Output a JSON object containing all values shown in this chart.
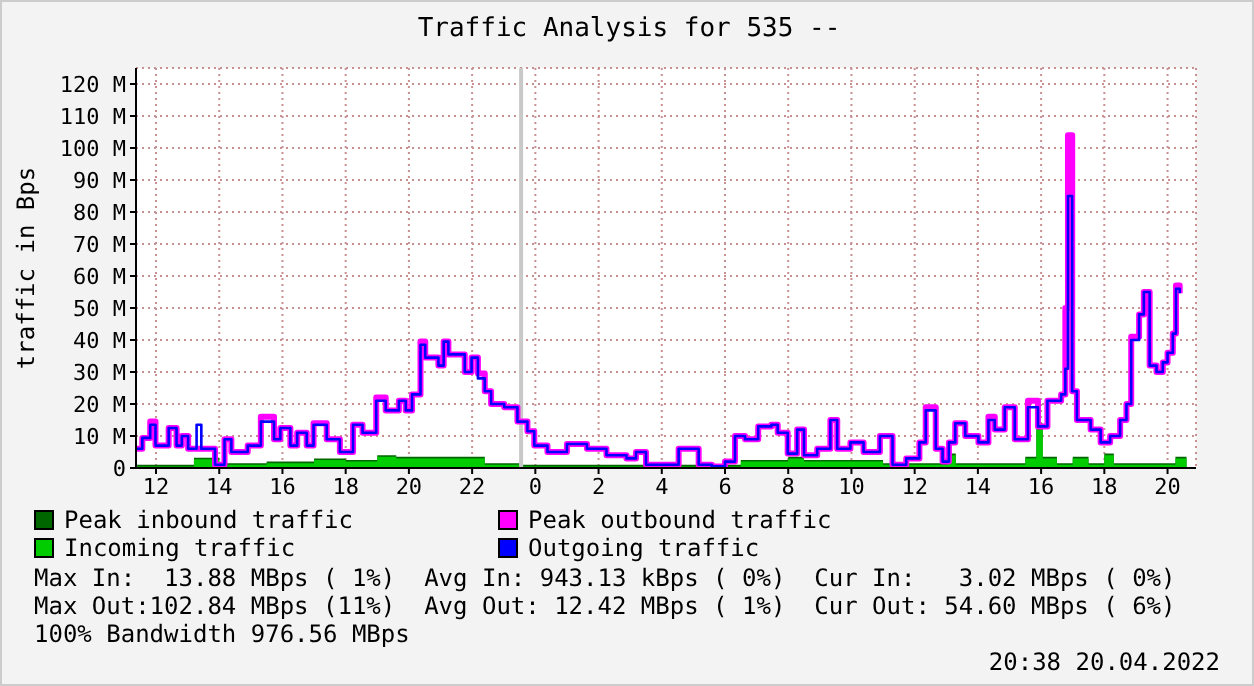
{
  "chart_data": {
    "type": "step",
    "title": "Traffic Analysis for 535 --",
    "ylabel": "traffic in Bps",
    "xlim": [
      "2022-04-19T11:22",
      "2022-04-20T20:54"
    ],
    "xticks": [
      {
        "value": "2022-04-19T12:00",
        "label": "12"
      },
      {
        "value": "2022-04-19T14:00",
        "label": "14"
      },
      {
        "value": "2022-04-19T16:00",
        "label": "16"
      },
      {
        "value": "2022-04-19T18:00",
        "label": "18"
      },
      {
        "value": "2022-04-19T20:00",
        "label": "20"
      },
      {
        "value": "2022-04-19T22:00",
        "label": "22"
      },
      {
        "value": "2022-04-20T00:00",
        "label": "0"
      },
      {
        "value": "2022-04-20T02:00",
        "label": "2"
      },
      {
        "value": "2022-04-20T04:00",
        "label": "4"
      },
      {
        "value": "2022-04-20T06:00",
        "label": "6"
      },
      {
        "value": "2022-04-20T08:00",
        "label": "8"
      },
      {
        "value": "2022-04-20T10:00",
        "label": "10"
      },
      {
        "value": "2022-04-20T12:00",
        "label": "12"
      },
      {
        "value": "2022-04-20T14:00",
        "label": "14"
      },
      {
        "value": "2022-04-20T16:00",
        "label": "16"
      },
      {
        "value": "2022-04-20T18:00",
        "label": "18"
      },
      {
        "value": "2022-04-20T20:00",
        "label": "20"
      }
    ],
    "ylim": [
      0,
      125
    ],
    "yticks": [
      0,
      {
        "value": 10,
        "label": "10 M"
      },
      {
        "value": 20,
        "label": "20 M"
      },
      {
        "value": 30,
        "label": "30 M"
      },
      {
        "value": 40,
        "label": "40 M"
      },
      {
        "value": 50,
        "label": "50 M"
      },
      {
        "value": 60,
        "label": "60 M"
      },
      {
        "value": 70,
        "label": "70 M"
      },
      {
        "value": 80,
        "label": "80 M"
      },
      {
        "value": 90,
        "label": "90 M"
      },
      {
        "value": 100,
        "label": "100 M"
      },
      {
        "value": 110,
        "label": "110 M"
      },
      {
        "value": 120,
        "label": "120 M"
      }
    ],
    "grid": true,
    "legend": "bottom",
    "line_style": "solid",
    "ref_lines": [
      {
        "axis": "x",
        "value": "2022-04-19T23:33",
        "color": "#c8c8c8"
      }
    ],
    "series": [
      {
        "name": "Peak inbound traffic",
        "type": "area",
        "color": "#006600",
        "x": [
          "2022-04-19T11:24",
          "2022-04-19T13:12",
          "2022-04-19T14:00",
          "2022-04-19T15:30",
          "2022-04-19T17:00",
          "2022-04-19T18:00",
          "2022-04-19T19:00",
          "2022-04-19T19:36",
          "2022-04-19T22:24",
          "2022-04-19T23:30",
          "2022-04-20T06:30",
          "2022-04-20T08:00",
          "2022-04-20T08:30",
          "2022-04-20T11:00",
          "2022-04-20T13:03",
          "2022-04-20T13:18",
          "2022-04-20T15:30",
          "2022-04-20T15:51",
          "2022-04-20T16:03",
          "2022-04-20T16:30",
          "2022-04-20T17:00",
          "2022-04-20T17:30",
          "2022-04-20T18:00",
          "2022-04-20T18:18",
          "2022-04-20T20:15",
          "2022-04-20T20:36"
        ],
        "values": [
          1,
          3.2,
          1.5,
          2,
          3,
          2.5,
          4,
          3.5,
          1.5,
          1,
          2.5,
          3.5,
          2.5,
          1.5,
          4.5,
          1.5,
          3.5,
          13.9,
          3.5,
          1.5,
          3.5,
          1.5,
          4.5,
          1.5,
          3.5,
          3.5
        ]
      },
      {
        "name": "Incoming traffic",
        "type": "area",
        "color": "#00cc00",
        "x": [
          "2022-04-19T11:24",
          "2022-04-19T13:12",
          "2022-04-19T14:00",
          "2022-04-19T15:30",
          "2022-04-19T17:00",
          "2022-04-19T18:00",
          "2022-04-19T19:00",
          "2022-04-19T19:36",
          "2022-04-19T22:24",
          "2022-04-19T23:30",
          "2022-04-20T06:30",
          "2022-04-20T08:00",
          "2022-04-20T08:30",
          "2022-04-20T11:00",
          "2022-04-20T13:03",
          "2022-04-20T13:18",
          "2022-04-20T15:30",
          "2022-04-20T15:51",
          "2022-04-20T16:03",
          "2022-04-20T16:30",
          "2022-04-20T17:00",
          "2022-04-20T17:30",
          "2022-04-20T18:00",
          "2022-04-20T18:18",
          "2022-04-20T20:15",
          "2022-04-20T20:36"
        ],
        "values": [
          0.5,
          2.7,
          1,
          1.5,
          2.5,
          2,
          3.5,
          3,
          1,
          0.5,
          2,
          3,
          2,
          1,
          4,
          1,
          3,
          12,
          3,
          1,
          3,
          1,
          4,
          1,
          3,
          3
        ]
      },
      {
        "name": "Peak outbound traffic",
        "color": "#ff00ff",
        "x": [
          "2022-04-19T11:23",
          "2022-04-19T11:34",
          "2022-04-19T11:49",
          "2022-04-19T11:59",
          "2022-04-19T12:24",
          "2022-04-19T12:39",
          "2022-04-19T12:49",
          "2022-04-19T13:01",
          "2022-04-19T13:17",
          "2022-04-19T13:26",
          "2022-04-19T13:52",
          "2022-04-19T14:10",
          "2022-04-19T14:23",
          "2022-04-19T14:54",
          "2022-04-19T15:19",
          "2022-04-19T15:44",
          "2022-04-19T15:56",
          "2022-04-19T16:15",
          "2022-04-19T16:28",
          "2022-04-19T16:46",
          "2022-04-19T16:59",
          "2022-04-19T17:24",
          "2022-04-19T17:49",
          "2022-04-19T18:14",
          "2022-04-19T18:32",
          "2022-04-19T18:58",
          "2022-04-19T19:16",
          "2022-04-19T19:41",
          "2022-04-19T19:54",
          "2022-04-19T20:06",
          "2022-04-19T20:22",
          "2022-04-19T20:31",
          "2022-04-19T20:56",
          "2022-04-19T21:06",
          "2022-04-19T21:15",
          "2022-04-19T21:34",
          "2022-04-19T21:46",
          "2022-04-19T21:59",
          "2022-04-19T22:11",
          "2022-04-19T22:24",
          "2022-04-19T22:36",
          "2022-04-19T23:01",
          "2022-04-19T23:26",
          "2022-04-19T23:45",
          "2022-04-19T23:58",
          "2022-04-20T00:23",
          "2022-04-20T01:00",
          "2022-04-20T01:38",
          "2022-04-20T02:15",
          "2022-04-20T02:53",
          "2022-04-20T03:11",
          "2022-04-20T03:30",
          "2022-04-20T04:08",
          "2022-04-20T04:32",
          "2022-04-20T05:10",
          "2022-04-20T05:35",
          "2022-04-20T06:00",
          "2022-04-20T06:19",
          "2022-04-20T06:38",
          "2022-04-20T07:03",
          "2022-04-20T07:28",
          "2022-04-20T07:40",
          "2022-04-20T07:59",
          "2022-04-20T08:17",
          "2022-04-20T08:30",
          "2022-04-20T08:55",
          "2022-04-20T09:20",
          "2022-04-20T09:33",
          "2022-04-20T09:58",
          "2022-04-20T10:23",
          "2022-04-20T10:54",
          "2022-04-20T11:18",
          "2022-04-20T11:44",
          "2022-04-20T12:09",
          "2022-04-20T12:21",
          "2022-04-20T12:40",
          "2022-04-20T12:53",
          "2022-04-20T13:05",
          "2022-04-20T13:17",
          "2022-04-20T13:36",
          "2022-04-20T14:01",
          "2022-04-20T14:20",
          "2022-04-20T14:32",
          "2022-04-20T14:51",
          "2022-04-20T15:10",
          "2022-04-20T15:35",
          "2022-04-20T15:54",
          "2022-04-20T16:12",
          "2022-04-20T16:38",
          "2022-04-20T16:46",
          "2022-04-20T16:51",
          "2022-04-20T16:59",
          "2022-04-20T17:08",
          "2022-04-20T17:34",
          "2022-04-20T17:53",
          "2022-04-20T18:11",
          "2022-04-20T18:30",
          "2022-04-20T18:42",
          "2022-04-20T18:51",
          "2022-04-20T19:06",
          "2022-04-20T19:15",
          "2022-04-20T19:26",
          "2022-04-20T19:39",
          "2022-04-20T19:51",
          "2022-04-20T20:00",
          "2022-04-20T20:10",
          "2022-04-20T20:16",
          "2022-04-20T20:23"
        ],
        "values": [
          6,
          9.4,
          14.5,
          7,
          12.5,
          7,
          10,
          6,
          6,
          6,
          1,
          9,
          5,
          7,
          16,
          9,
          12.5,
          7,
          11,
          7,
          14,
          9,
          5,
          13.5,
          11,
          22,
          18,
          21,
          18,
          23,
          39.5,
          34.5,
          32,
          39.5,
          35.5,
          35.5,
          30,
          34.5,
          29.5,
          24,
          20,
          19,
          14.5,
          11.5,
          7,
          5,
          7.5,
          6,
          4,
          3,
          5,
          1,
          1,
          6,
          1,
          0.5,
          2,
          10,
          9,
          13,
          13.5,
          11,
          4.5,
          12,
          4,
          6,
          15,
          6,
          8,
          5,
          10,
          1,
          3,
          8,
          19,
          6,
          2,
          8,
          14,
          10,
          8,
          16,
          12,
          19,
          9,
          21,
          13,
          21,
          23,
          50,
          104,
          24,
          15,
          12,
          8,
          10,
          15,
          20,
          41,
          48,
          55,
          32,
          30,
          33,
          36,
          42,
          57,
          54.6
        ]
      },
      {
        "name": "Outgoing traffic",
        "color": "#0000ff",
        "x": [
          "2022-04-19T11:23",
          "2022-04-19T11:34",
          "2022-04-19T11:49",
          "2022-04-19T11:59",
          "2022-04-19T12:24",
          "2022-04-19T12:39",
          "2022-04-19T12:49",
          "2022-04-19T13:01",
          "2022-04-19T13:17",
          "2022-04-19T13:26",
          "2022-04-19T13:52",
          "2022-04-19T14:10",
          "2022-04-19T14:23",
          "2022-04-19T14:54",
          "2022-04-19T15:19",
          "2022-04-19T15:44",
          "2022-04-19T15:56",
          "2022-04-19T16:15",
          "2022-04-19T16:28",
          "2022-04-19T16:46",
          "2022-04-19T16:59",
          "2022-04-19T17:24",
          "2022-04-19T17:49",
          "2022-04-19T18:14",
          "2022-04-19T18:32",
          "2022-04-19T18:58",
          "2022-04-19T19:16",
          "2022-04-19T19:41",
          "2022-04-19T19:54",
          "2022-04-19T20:06",
          "2022-04-19T20:22",
          "2022-04-19T20:31",
          "2022-04-19T20:56",
          "2022-04-19T21:06",
          "2022-04-19T21:15",
          "2022-04-19T21:34",
          "2022-04-19T21:46",
          "2022-04-19T21:59",
          "2022-04-19T22:11",
          "2022-04-19T22:24",
          "2022-04-19T22:36",
          "2022-04-19T23:01",
          "2022-04-19T23:26",
          "2022-04-19T23:45",
          "2022-04-19T23:58",
          "2022-04-20T00:23",
          "2022-04-20T01:00",
          "2022-04-20T01:38",
          "2022-04-20T02:15",
          "2022-04-20T02:53",
          "2022-04-20T03:11",
          "2022-04-20T03:30",
          "2022-04-20T04:08",
          "2022-04-20T04:32",
          "2022-04-20T05:10",
          "2022-04-20T05:35",
          "2022-04-20T06:00",
          "2022-04-20T06:19",
          "2022-04-20T06:38",
          "2022-04-20T07:03",
          "2022-04-20T07:28",
          "2022-04-20T07:40",
          "2022-04-20T07:59",
          "2022-04-20T08:17",
          "2022-04-20T08:30",
          "2022-04-20T08:55",
          "2022-04-20T09:20",
          "2022-04-20T09:33",
          "2022-04-20T09:58",
          "2022-04-20T10:23",
          "2022-04-20T10:54",
          "2022-04-20T11:18",
          "2022-04-20T11:44",
          "2022-04-20T12:09",
          "2022-04-20T12:21",
          "2022-04-20T12:40",
          "2022-04-20T12:53",
          "2022-04-20T13:05",
          "2022-04-20T13:17",
          "2022-04-20T13:36",
          "2022-04-20T14:01",
          "2022-04-20T14:20",
          "2022-04-20T14:32",
          "2022-04-20T14:51",
          "2022-04-20T15:10",
          "2022-04-20T15:35",
          "2022-04-20T15:54",
          "2022-04-20T16:12",
          "2022-04-20T16:38",
          "2022-04-20T16:46",
          "2022-04-20T16:51",
          "2022-04-20T16:59",
          "2022-04-20T17:08",
          "2022-04-20T17:34",
          "2022-04-20T17:53",
          "2022-04-20T18:11",
          "2022-04-20T18:30",
          "2022-04-20T18:42",
          "2022-04-20T18:51",
          "2022-04-20T19:06",
          "2022-04-20T19:15",
          "2022-04-20T19:26",
          "2022-04-20T19:39",
          "2022-04-20T19:51",
          "2022-04-20T20:00",
          "2022-04-20T20:10",
          "2022-04-20T20:16",
          "2022-04-20T20:23"
        ],
        "values": [
          6,
          9.4,
          13.5,
          7,
          12.5,
          7,
          10,
          6,
          13.5,
          6,
          1,
          9,
          5,
          7,
          14.5,
          9,
          12.5,
          7,
          11,
          7,
          13.5,
          9,
          5,
          13.5,
          11,
          21,
          18,
          21,
          18,
          23,
          38.5,
          34.5,
          32,
          39.5,
          35.5,
          35.5,
          30,
          34.5,
          28,
          24,
          20,
          19,
          14.5,
          11.5,
          7,
          5,
          7.5,
          6,
          4,
          3,
          5,
          1,
          1,
          6,
          1,
          0.5,
          2,
          10,
          9,
          13,
          13.5,
          11,
          4.5,
          12,
          4,
          6,
          15,
          6,
          8,
          5,
          10,
          1,
          3,
          8,
          18,
          6,
          2,
          8,
          14,
          10,
          8,
          15,
          12,
          19,
          9,
          19,
          13,
          21,
          23,
          31,
          85,
          24,
          15,
          12,
          8,
          10,
          15,
          20,
          40,
          48,
          55,
          32,
          30,
          33,
          36,
          42,
          56,
          54.6
        ]
      }
    ],
    "annotations": [
      "Max In:  13.88 MBps ( 1%)  Avg In: 943.13 kBps ( 0%)  Cur In:   3.02 MBps ( 0%)",
      "Max Out:102.84 MBps (11%)  Avg Out: 12.42 MBps ( 1%)  Cur Out: 54.60 MBps ( 6%)",
      "100% Bandwidth 976.56 MBps",
      "20:38 20.04.2022"
    ]
  }
}
